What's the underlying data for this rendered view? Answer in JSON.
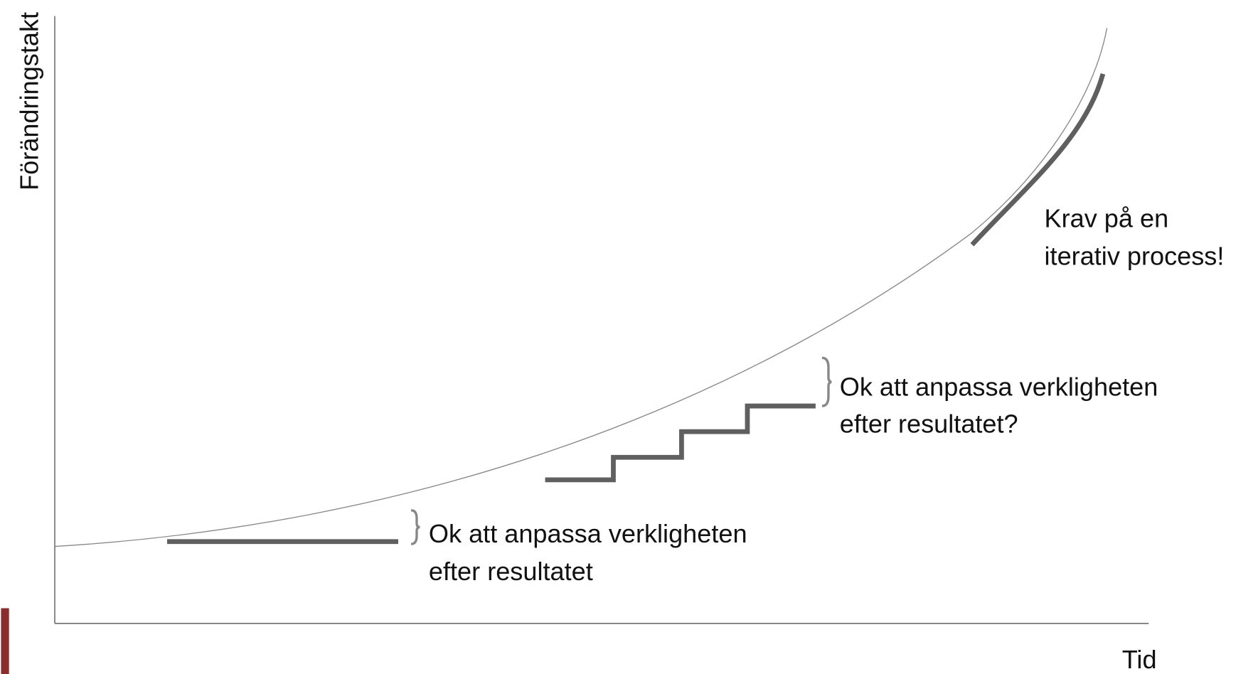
{
  "axes": {
    "y_label": "Förändringstakt",
    "x_label": "Tid"
  },
  "annotations": [
    {
      "lines": [
        "Krav på en",
        "iterativ process!"
      ]
    },
    {
      "lines": [
        "Ok att anpassa verkligheten",
        "efter resultatet?"
      ]
    },
    {
      "lines": [
        "Ok att anpassa verkligheten",
        "efter resultatet"
      ]
    }
  ]
}
